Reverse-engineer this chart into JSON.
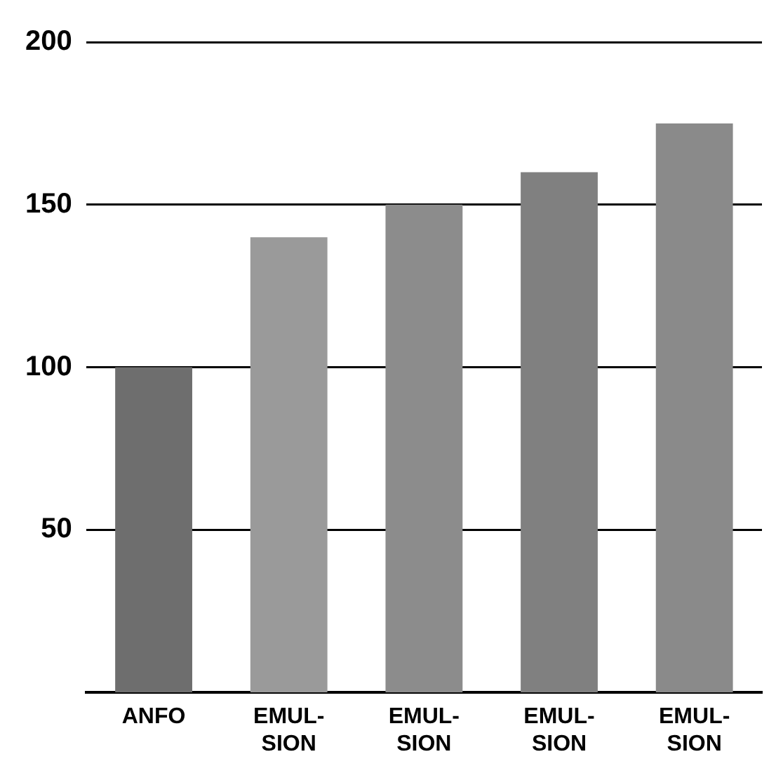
{
  "chart_data": {
    "type": "bar",
    "categories": [
      "ANFO",
      "EMUL-\nSION",
      "EMUL-\nSION",
      "EMUL-\nSION",
      "EMUL-\nSION"
    ],
    "values": [
      100,
      140,
      150,
      160,
      175
    ],
    "colors": [
      "#6e6e6e",
      "#9a9a9a",
      "#8c8c8c",
      "#808080",
      "#8a8a8a"
    ],
    "ylim": [
      0,
      200
    ],
    "yticks": [
      50,
      100,
      150,
      200
    ],
    "grid": "y"
  }
}
